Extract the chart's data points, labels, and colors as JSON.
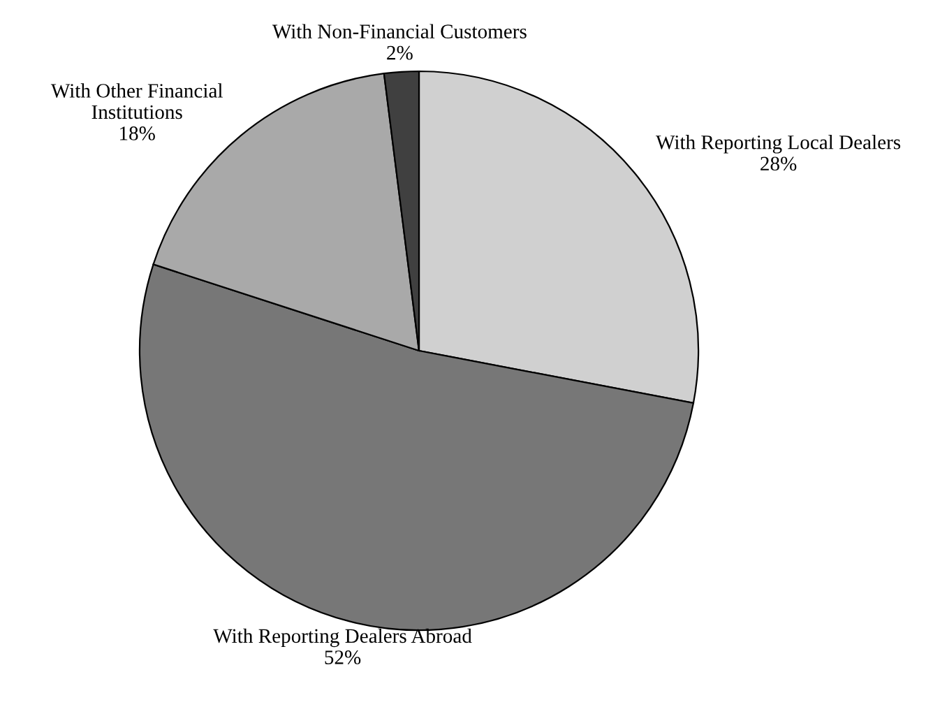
{
  "chart_data": {
    "type": "pie",
    "categories": [
      "With Reporting Local Dealers",
      "With Reporting Dealers Abroad",
      "With Other Financial\nInstitutions",
      "With Non-Financial Customers"
    ],
    "values": [
      28,
      52,
      18,
      2
    ],
    "value_labels": [
      "28%",
      "52%",
      "18%",
      "2%"
    ],
    "colors": [
      "#d0d0d0",
      "#777777",
      "#a9a9a9",
      "#404040"
    ],
    "legend": false
  }
}
